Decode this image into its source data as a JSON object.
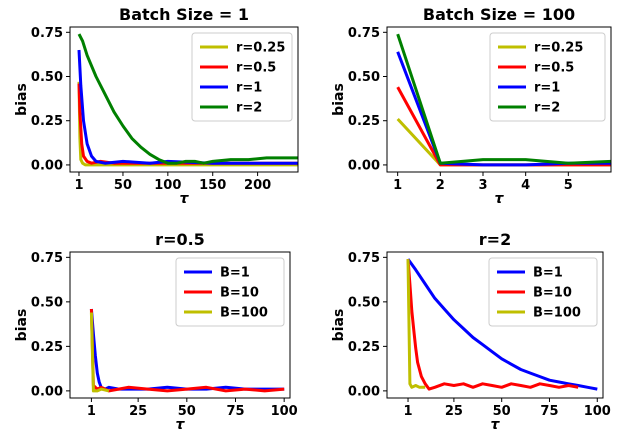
{
  "chart_data": [
    {
      "type": "line",
      "title": "Batch Size = 1",
      "xlabel": "τ",
      "ylabel": "bias",
      "xlim": [
        -9,
        245
      ],
      "ylim": [
        -0.04,
        0.78
      ],
      "xticks": [
        1,
        50,
        100,
        150,
        200
      ],
      "xtick_labels": [
        "1",
        "50",
        "100",
        "150",
        "200"
      ],
      "yticks": [
        0,
        0.25,
        0.5,
        0.75
      ],
      "ytick_labels": [
        "0.00",
        "0.25",
        "0.50",
        "0.75"
      ],
      "legend_position": "top-right",
      "series": [
        {
          "name": "r=0.25",
          "color": "#bfbf00",
          "x": [
            1,
            2,
            3,
            5,
            8,
            15,
            30,
            60,
            100,
            150,
            200,
            245
          ],
          "values": [
            0.47,
            0.15,
            0.03,
            0.01,
            0.0,
            0.0,
            0.0,
            0.0,
            0.0,
            0.0,
            0.0,
            0.0
          ]
        },
        {
          "name": "r=0.5",
          "color": "#ff0000",
          "x": [
            1,
            2,
            4,
            6,
            10,
            15,
            25,
            40,
            70,
            100,
            150,
            200,
            245
          ],
          "values": [
            0.46,
            0.3,
            0.12,
            0.05,
            0.02,
            0.01,
            0.02,
            0.01,
            0.01,
            0.01,
            0.01,
            0.01,
            0.01
          ]
        },
        {
          "name": "r=1",
          "color": "#0000ff",
          "x": [
            1,
            3,
            6,
            10,
            15,
            20,
            30,
            50,
            80,
            100,
            150,
            200,
            245
          ],
          "values": [
            0.65,
            0.45,
            0.25,
            0.12,
            0.05,
            0.02,
            0.01,
            0.02,
            0.01,
            0.02,
            0.01,
            0.01,
            0.01
          ]
        },
        {
          "name": "r=2",
          "color": "#008000",
          "x": [
            1,
            5,
            10,
            20,
            30,
            40,
            50,
            60,
            70,
            80,
            90,
            100,
            110,
            120,
            130,
            140,
            150,
            170,
            190,
            210,
            230,
            245
          ],
          "values": [
            0.74,
            0.7,
            0.62,
            0.5,
            0.4,
            0.3,
            0.22,
            0.15,
            0.1,
            0.06,
            0.03,
            0.01,
            0.01,
            0.02,
            0.02,
            0.01,
            0.02,
            0.03,
            0.03,
            0.04,
            0.04,
            0.04
          ]
        }
      ]
    },
    {
      "type": "line",
      "title": "Batch Size = 100",
      "xlabel": "τ",
      "ylabel": "bias",
      "xlim": [
        0.75,
        6.0
      ],
      "ylim": [
        -0.04,
        0.78
      ],
      "xticks": [
        1,
        2,
        3,
        4,
        5
      ],
      "xtick_labels": [
        "1",
        "2",
        "3",
        "4",
        "5"
      ],
      "yticks": [
        0,
        0.25,
        0.5,
        0.75
      ],
      "ytick_labels": [
        "0.00",
        "0.25",
        "0.50",
        "0.75"
      ],
      "legend_position": "top-right",
      "series": [
        {
          "name": "r=0.25",
          "color": "#bfbf00",
          "x": [
            1,
            2,
            3,
            4,
            5,
            6
          ],
          "values": [
            0.26,
            0.0,
            0.0,
            0.0,
            0.0,
            0.0
          ]
        },
        {
          "name": "r=0.5",
          "color": "#ff0000",
          "x": [
            1,
            2,
            3,
            4,
            5,
            6
          ],
          "values": [
            0.44,
            0.0,
            0.0,
            0.0,
            0.0,
            0.0
          ]
        },
        {
          "name": "r=1",
          "color": "#0000ff",
          "x": [
            1,
            2,
            3,
            4,
            5,
            6
          ],
          "values": [
            0.64,
            0.01,
            0.0,
            0.0,
            0.01,
            0.01
          ]
        },
        {
          "name": "r=2",
          "color": "#008000",
          "x": [
            1,
            2,
            3,
            4,
            5,
            6
          ],
          "values": [
            0.74,
            0.01,
            0.03,
            0.03,
            0.01,
            0.02
          ]
        }
      ]
    },
    {
      "type": "line",
      "title": "r=0.5",
      "xlabel": "τ",
      "ylabel": "bias",
      "xlim": [
        -10,
        103
      ],
      "ylim": [
        -0.04,
        0.78
      ],
      "xticks": [
        1,
        25,
        50,
        75,
        100
      ],
      "xtick_labels": [
        "1",
        "25",
        "50",
        "75",
        "100"
      ],
      "yticks": [
        0,
        0.25,
        0.5,
        0.75
      ],
      "ytick_labels": [
        "0.00",
        "0.25",
        "0.50",
        "0.75"
      ],
      "legend_position": "top-right",
      "series": [
        {
          "name": "B=1",
          "color": "#0000ff",
          "x": [
            1,
            2,
            3,
            4,
            5,
            6,
            8,
            10,
            15,
            20,
            30,
            40,
            50,
            60,
            70,
            80,
            90,
            100
          ],
          "values": [
            0.46,
            0.32,
            0.2,
            0.1,
            0.05,
            0.02,
            0.01,
            0.02,
            0.01,
            0.01,
            0.01,
            0.02,
            0.01,
            0.01,
            0.02,
            0.01,
            0.01,
            0.01
          ]
        },
        {
          "name": "B=10",
          "color": "#ff0000",
          "x": [
            1,
            2,
            4,
            6,
            10,
            15,
            20,
            30,
            40,
            50,
            60,
            70,
            80,
            90,
            100
          ],
          "values": [
            0.46,
            0.03,
            0.01,
            0.02,
            0.0,
            0.01,
            0.02,
            0.01,
            0.0,
            0.01,
            0.02,
            0.0,
            0.01,
            0.0,
            0.01
          ]
        },
        {
          "name": "B=100",
          "color": "#bfbf00",
          "x": [
            1,
            2,
            4,
            6,
            10
          ],
          "values": [
            0.44,
            0.0,
            0.0,
            0.01,
            0.0
          ]
        }
      ]
    },
    {
      "type": "line",
      "title": "r=2",
      "xlabel": "τ",
      "ylabel": "bias",
      "xlim": [
        -10,
        103
      ],
      "ylim": [
        -0.04,
        0.78
      ],
      "xticks": [
        1,
        25,
        50,
        75,
        100
      ],
      "xtick_labels": [
        "1",
        "25",
        "50",
        "75",
        "100"
      ],
      "yticks": [
        0,
        0.25,
        0.5,
        0.75
      ],
      "ytick_labels": [
        "0.00",
        "0.25",
        "0.50",
        "0.75"
      ],
      "legend_position": "top-right",
      "series": [
        {
          "name": "B=1",
          "color": "#0000ff",
          "x": [
            1,
            5,
            10,
            15,
            20,
            25,
            30,
            35,
            40,
            45,
            50,
            55,
            60,
            65,
            70,
            75,
            80,
            85,
            90,
            95,
            100
          ],
          "values": [
            0.74,
            0.68,
            0.6,
            0.52,
            0.46,
            0.4,
            0.35,
            0.3,
            0.26,
            0.22,
            0.18,
            0.15,
            0.12,
            0.1,
            0.08,
            0.06,
            0.05,
            0.04,
            0.03,
            0.02,
            0.01
          ]
        },
        {
          "name": "B=10",
          "color": "#ff0000",
          "x": [
            1,
            2,
            3,
            4,
            5,
            6,
            8,
            10,
            12,
            15,
            20,
            25,
            30,
            35,
            40,
            45,
            50,
            55,
            60,
            65,
            70,
            75,
            80,
            85,
            90
          ],
          "values": [
            0.74,
            0.6,
            0.45,
            0.34,
            0.24,
            0.16,
            0.08,
            0.04,
            0.01,
            0.02,
            0.04,
            0.03,
            0.04,
            0.02,
            0.04,
            0.03,
            0.02,
            0.04,
            0.03,
            0.02,
            0.04,
            0.03,
            0.02,
            0.03,
            0.02
          ]
        },
        {
          "name": "B=100",
          "color": "#bfbf00",
          "x": [
            1,
            2,
            3,
            5,
            7,
            10
          ],
          "values": [
            0.74,
            0.04,
            0.02,
            0.03,
            0.02,
            0.02
          ]
        }
      ]
    }
  ]
}
